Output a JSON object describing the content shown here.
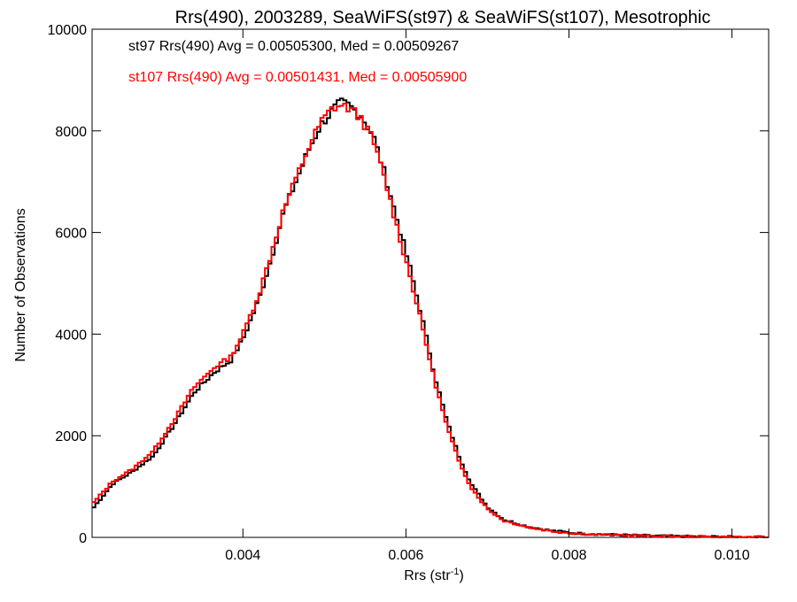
{
  "chart_data": {
    "type": "line",
    "title": "Rrs(490), 2003289, SeaWiFS(st97) & SeaWiFS(st107), Mesotrophic",
    "xlabel": "Rrs (str",
    "xlabel_sup": "-1",
    "xlabel_close": ")",
    "ylabel": "Number of Observations",
    "xlim": [
      0.00215,
      0.01045
    ],
    "ylim": [
      0,
      10000
    ],
    "x_ticks": [
      0.004,
      0.006,
      0.008,
      0.01
    ],
    "x_tick_labels": [
      "0.004",
      "0.006",
      "0.008",
      "0.010"
    ],
    "y_ticks": [
      0,
      2000,
      4000,
      6000,
      8000,
      10000
    ],
    "y_tick_labels": [
      "0",
      "2000",
      "4000",
      "6000",
      "8000",
      "10000"
    ],
    "grid": false,
    "step": true,
    "legend_placement": "top-left",
    "series": [
      {
        "name": "st97",
        "color": "#000000",
        "legend": "st97 Rrs(490) Avg = 0.00505300, Med = 0.00509267",
        "points": [
          [
            0.00215,
            550
          ],
          [
            0.0024,
            1050
          ],
          [
            0.00265,
            1300
          ],
          [
            0.0029,
            1600
          ],
          [
            0.00315,
            2200
          ],
          [
            0.0034,
            2850
          ],
          [
            0.00365,
            3250
          ],
          [
            0.00385,
            3480
          ],
          [
            0.004,
            3900
          ],
          [
            0.0042,
            4700
          ],
          [
            0.00435,
            5500
          ],
          [
            0.0045,
            6400
          ],
          [
            0.00465,
            7000
          ],
          [
            0.0048,
            7600
          ],
          [
            0.00495,
            8100
          ],
          [
            0.0051,
            8400
          ],
          [
            0.0052,
            8550
          ],
          [
            0.0053,
            8500
          ],
          [
            0.00545,
            8300
          ],
          [
            0.0056,
            7900
          ],
          [
            0.00575,
            7100
          ],
          [
            0.0059,
            6200
          ],
          [
            0.00605,
            5300
          ],
          [
            0.0062,
            4300
          ],
          [
            0.00635,
            3200
          ],
          [
            0.0065,
            2300
          ],
          [
            0.00665,
            1600
          ],
          [
            0.0068,
            1050
          ],
          [
            0.007,
            600
          ],
          [
            0.0072,
            350
          ],
          [
            0.0075,
            210
          ],
          [
            0.0078,
            130
          ],
          [
            0.0081,
            80
          ],
          [
            0.0084,
            60
          ],
          [
            0.0088,
            40
          ],
          [
            0.0092,
            25
          ],
          [
            0.0096,
            15
          ],
          [
            0.01,
            10
          ],
          [
            0.01045,
            5
          ]
        ]
      },
      {
        "name": "st107",
        "color": "#ff0000",
        "legend": "st107 Rrs(490) Avg = 0.00501431, Med = 0.00505900",
        "points": [
          [
            0.00215,
            650
          ],
          [
            0.0024,
            1100
          ],
          [
            0.00265,
            1350
          ],
          [
            0.0029,
            1700
          ],
          [
            0.00315,
            2300
          ],
          [
            0.0034,
            2950
          ],
          [
            0.00365,
            3350
          ],
          [
            0.00385,
            3550
          ],
          [
            0.004,
            4000
          ],
          [
            0.0042,
            4800
          ],
          [
            0.00435,
            5600
          ],
          [
            0.0045,
            6450
          ],
          [
            0.00465,
            7050
          ],
          [
            0.0048,
            7650
          ],
          [
            0.00495,
            8150
          ],
          [
            0.0051,
            8450
          ],
          [
            0.0052,
            8500
          ],
          [
            0.0053,
            8450
          ],
          [
            0.00545,
            8250
          ],
          [
            0.0056,
            7800
          ],
          [
            0.00575,
            7000
          ],
          [
            0.0059,
            6050
          ],
          [
            0.00605,
            5150
          ],
          [
            0.0062,
            4150
          ],
          [
            0.00635,
            3100
          ],
          [
            0.0065,
            2200
          ],
          [
            0.00665,
            1500
          ],
          [
            0.0068,
            980
          ],
          [
            0.007,
            560
          ],
          [
            0.0072,
            330
          ],
          [
            0.0075,
            200
          ],
          [
            0.0078,
            120
          ],
          [
            0.0081,
            75
          ],
          [
            0.0084,
            55
          ],
          [
            0.0088,
            35
          ],
          [
            0.0092,
            22
          ],
          [
            0.0096,
            13
          ],
          [
            0.01,
            8
          ],
          [
            0.01045,
            4
          ]
        ]
      }
    ]
  }
}
